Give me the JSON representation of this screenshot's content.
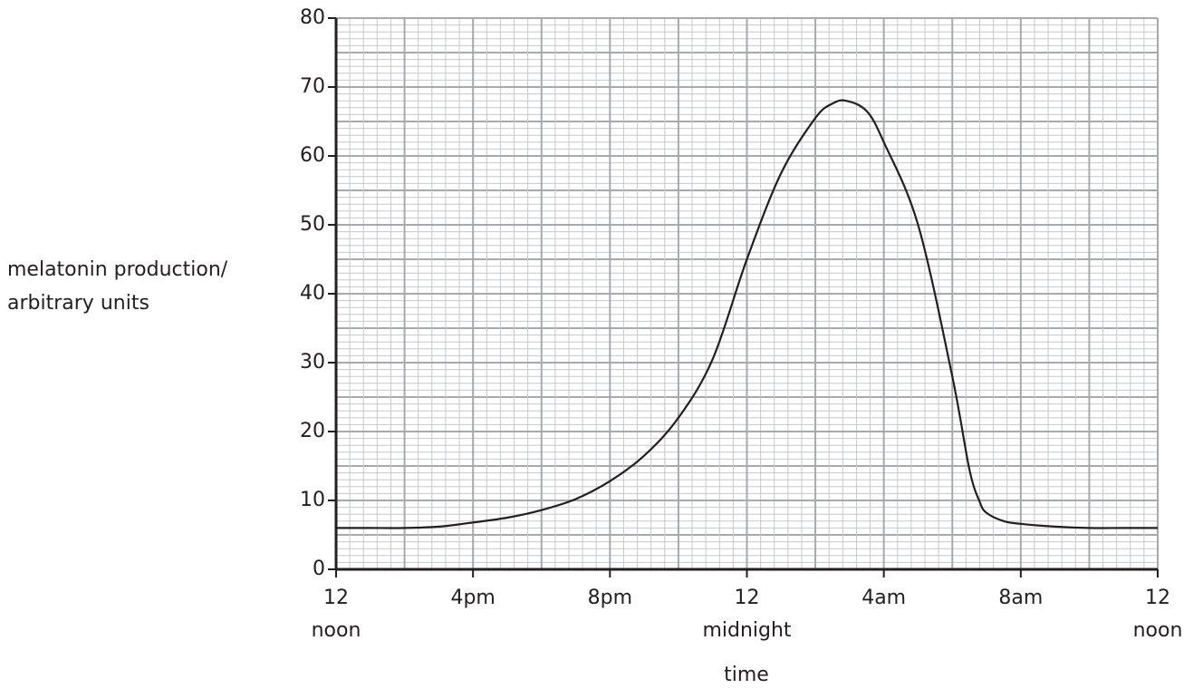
{
  "chart_data": {
    "type": "line",
    "ylabel": [
      "melatonin production/",
      "arbitrary units"
    ],
    "xlabel": "time",
    "x": [
      0,
      1,
      2,
      3,
      4,
      5,
      6,
      7,
      8,
      9,
      10,
      11,
      12,
      13,
      14,
      14.5,
      14.9,
      15.5,
      16,
      17,
      18,
      18.5,
      18.8,
      19,
      19.5,
      20,
      21,
      22,
      23,
      24
    ],
    "series": [
      {
        "color": "#231f20",
        "values": [
          6,
          6,
          6,
          6.2,
          6.8,
          7.5,
          8.6,
          10.2,
          12.8,
          16.5,
          22,
          30.5,
          45,
          57.5,
          65.5,
          67.6,
          68,
          66.5,
          62,
          50,
          28,
          14.5,
          9.8,
          8.2,
          7,
          6.6,
          6.2,
          6,
          6,
          6
        ]
      }
    ],
    "xlim": [
      0,
      24
    ],
    "xticks": [
      {
        "value": 0,
        "label": "12",
        "sublabel": "noon"
      },
      {
        "value": 4,
        "label": "4pm"
      },
      {
        "value": 8,
        "label": "8pm"
      },
      {
        "value": 12,
        "label": "12",
        "sublabel": "midnight"
      },
      {
        "value": 16,
        "label": "4am"
      },
      {
        "value": 20,
        "label": "8am"
      },
      {
        "value": 24,
        "label": "12",
        "sublabel": "noon"
      }
    ],
    "ylim": [
      0,
      80
    ],
    "yticks": [
      0,
      10,
      20,
      30,
      40,
      50,
      60,
      70,
      80
    ],
    "grid": true
  }
}
